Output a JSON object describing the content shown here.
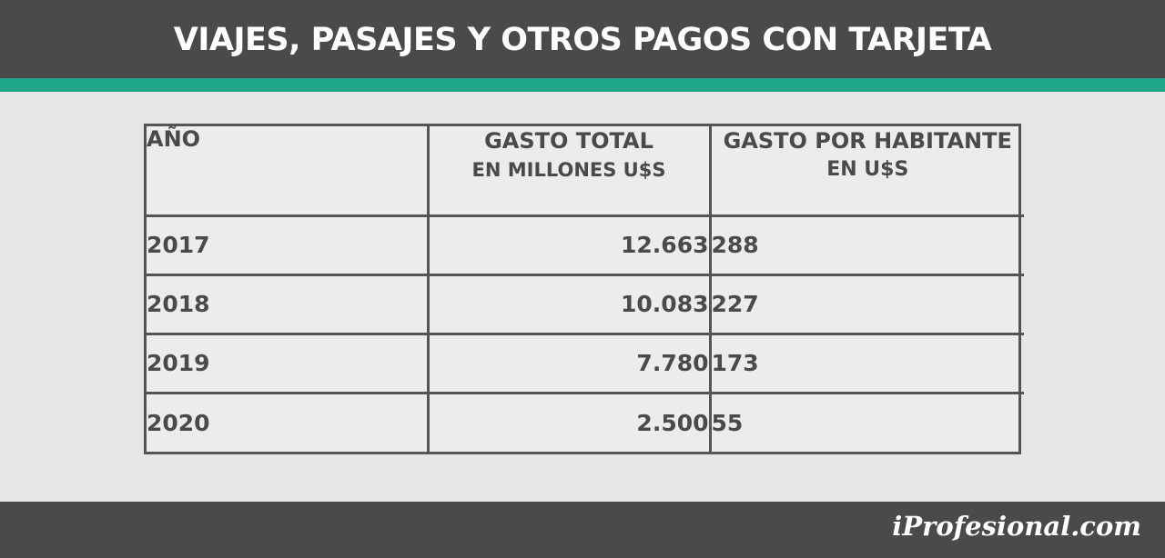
{
  "header": {
    "title": "VIAJES, PASAJES Y OTROS PAGOS CON TARJETA"
  },
  "colors": {
    "header_bg": "#4a4a4a",
    "accent": "#1ea58a",
    "background": "#e6e6e6",
    "grid": "#555555",
    "text": "#4a4a4a"
  },
  "chart_data": {
    "type": "table",
    "columns": [
      {
        "line1": "AÑO",
        "line2": ""
      },
      {
        "line1": "GASTO TOTAL",
        "line2": "EN MILLONES U$S"
      },
      {
        "line1": "GASTO POR HABITANTE",
        "line2": "EN U$S"
      }
    ],
    "rows": [
      {
        "year": "2017",
        "total": "12.663",
        "per_capita": "288"
      },
      {
        "year": "2018",
        "total": "10.083",
        "per_capita": "227"
      },
      {
        "year": "2019",
        "total": "7.780",
        "per_capita": "173"
      },
      {
        "year": "2020",
        "total": "2.500",
        "per_capita": "55"
      }
    ]
  },
  "footer": {
    "brand": "iProfesional.com"
  }
}
